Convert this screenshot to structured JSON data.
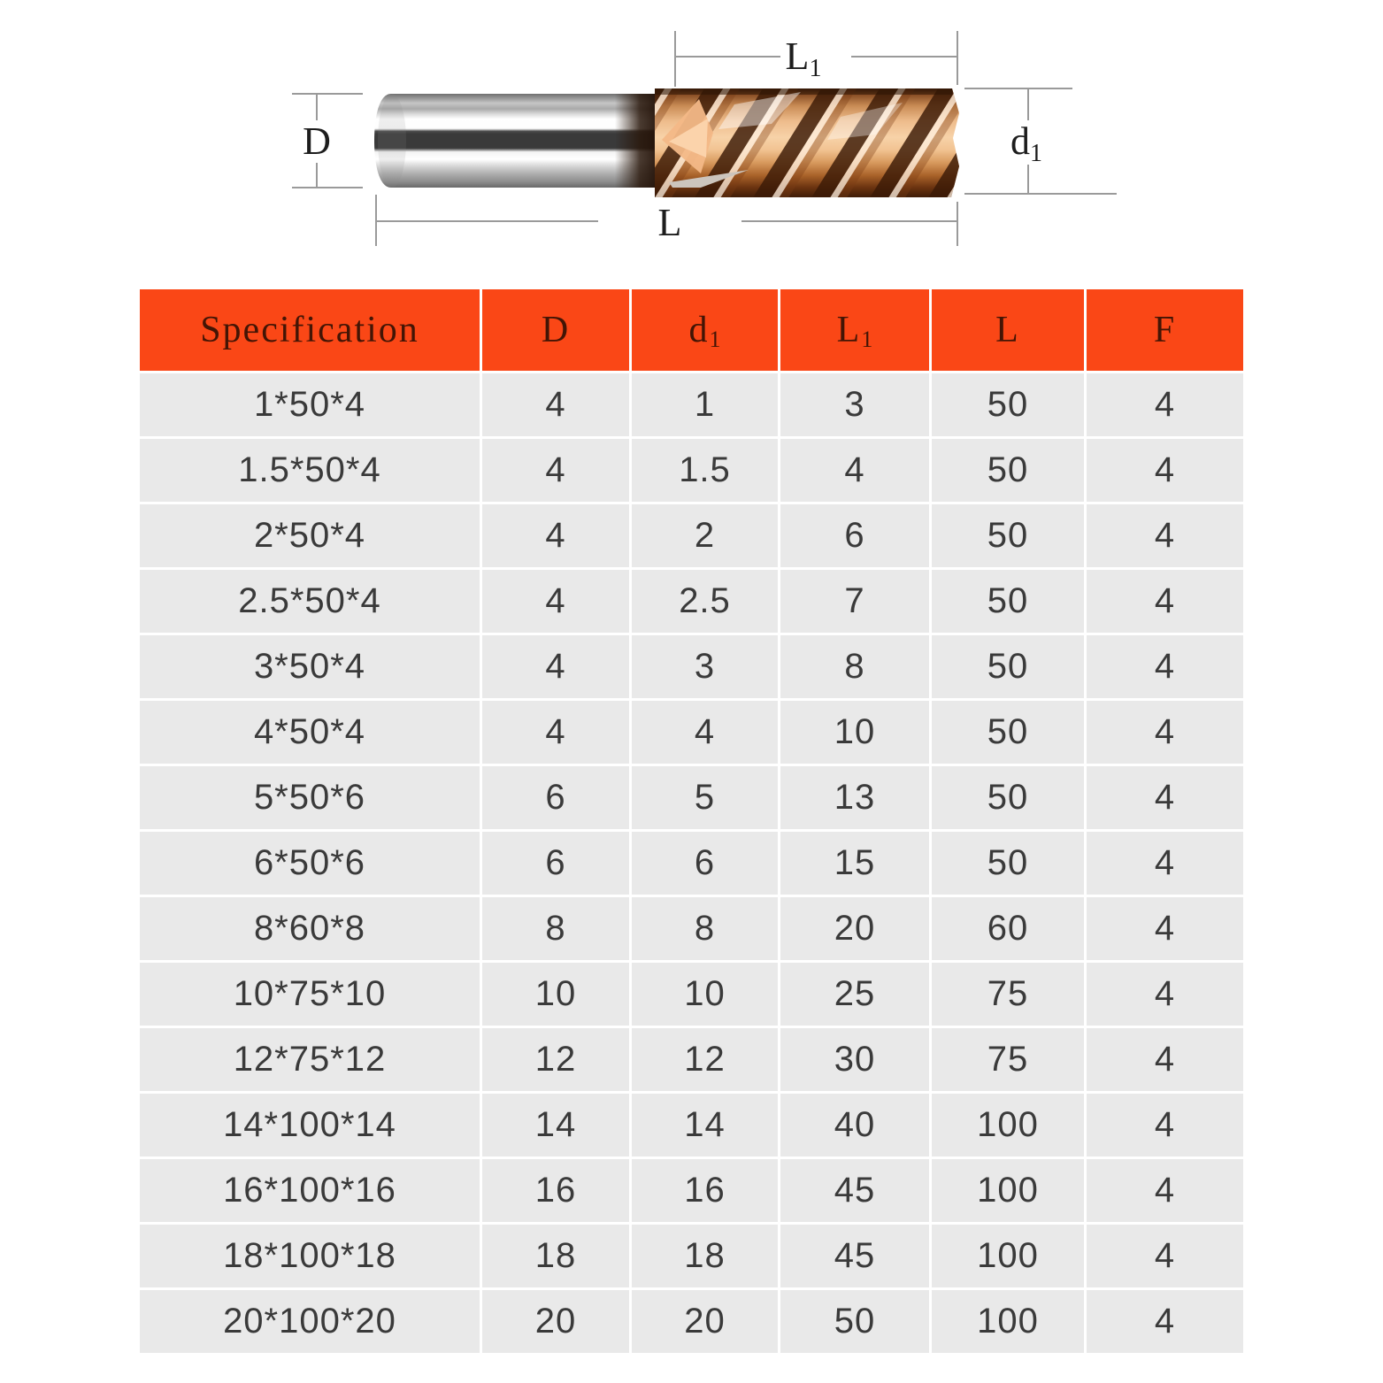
{
  "diagram": {
    "description": "4-flute carbide end mill with silver shank and copper coated flutes",
    "dims": {
      "shank_diameter": {
        "label": "D",
        "sub": ""
      },
      "flute_length": {
        "label": "L",
        "sub": "1"
      },
      "cut_diameter": {
        "label": "d",
        "sub": "1"
      },
      "overall_length": {
        "label": "L",
        "sub": ""
      }
    },
    "colors": {
      "flute_copper": "#D89A5E",
      "flute_dark": "#3F1E0A",
      "shank_silver": "#C4C4C4",
      "shank_dark_band": "#3A3A3A",
      "dim_line_gray": "#9A9A9A"
    }
  },
  "table": {
    "header_bg": "#FA4716",
    "header_text_color": "#431505",
    "row_bg": "#E9E9E9",
    "cell_text_color": "#3A3A3A",
    "headers": [
      {
        "label": "Specification",
        "sub": ""
      },
      {
        "label": "D",
        "sub": ""
      },
      {
        "label": "d",
        "sub": "1"
      },
      {
        "label": "L",
        "sub": "1"
      },
      {
        "label": "L",
        "sub": ""
      },
      {
        "label": "F",
        "sub": ""
      }
    ],
    "rows": [
      [
        "1*50*4",
        "4",
        "1",
        "3",
        "50",
        "4"
      ],
      [
        "1.5*50*4",
        "4",
        "1.5",
        "4",
        "50",
        "4"
      ],
      [
        "2*50*4",
        "4",
        "2",
        "6",
        "50",
        "4"
      ],
      [
        "2.5*50*4",
        "4",
        "2.5",
        "7",
        "50",
        "4"
      ],
      [
        "3*50*4",
        "4",
        "3",
        "8",
        "50",
        "4"
      ],
      [
        "4*50*4",
        "4",
        "4",
        "10",
        "50",
        "4"
      ],
      [
        "5*50*6",
        "6",
        "5",
        "13",
        "50",
        "4"
      ],
      [
        "6*50*6",
        "6",
        "6",
        "15",
        "50",
        "4"
      ],
      [
        "8*60*8",
        "8",
        "8",
        "20",
        "60",
        "4"
      ],
      [
        "10*75*10",
        "10",
        "10",
        "25",
        "75",
        "4"
      ],
      [
        "12*75*12",
        "12",
        "12",
        "30",
        "75",
        "4"
      ],
      [
        "14*100*14",
        "14",
        "14",
        "40",
        "100",
        "4"
      ],
      [
        "16*100*16",
        "16",
        "16",
        "45",
        "100",
        "4"
      ],
      [
        "18*100*18",
        "18",
        "18",
        "45",
        "100",
        "4"
      ],
      [
        "20*100*20",
        "20",
        "20",
        "50",
        "100",
        "4"
      ]
    ]
  }
}
